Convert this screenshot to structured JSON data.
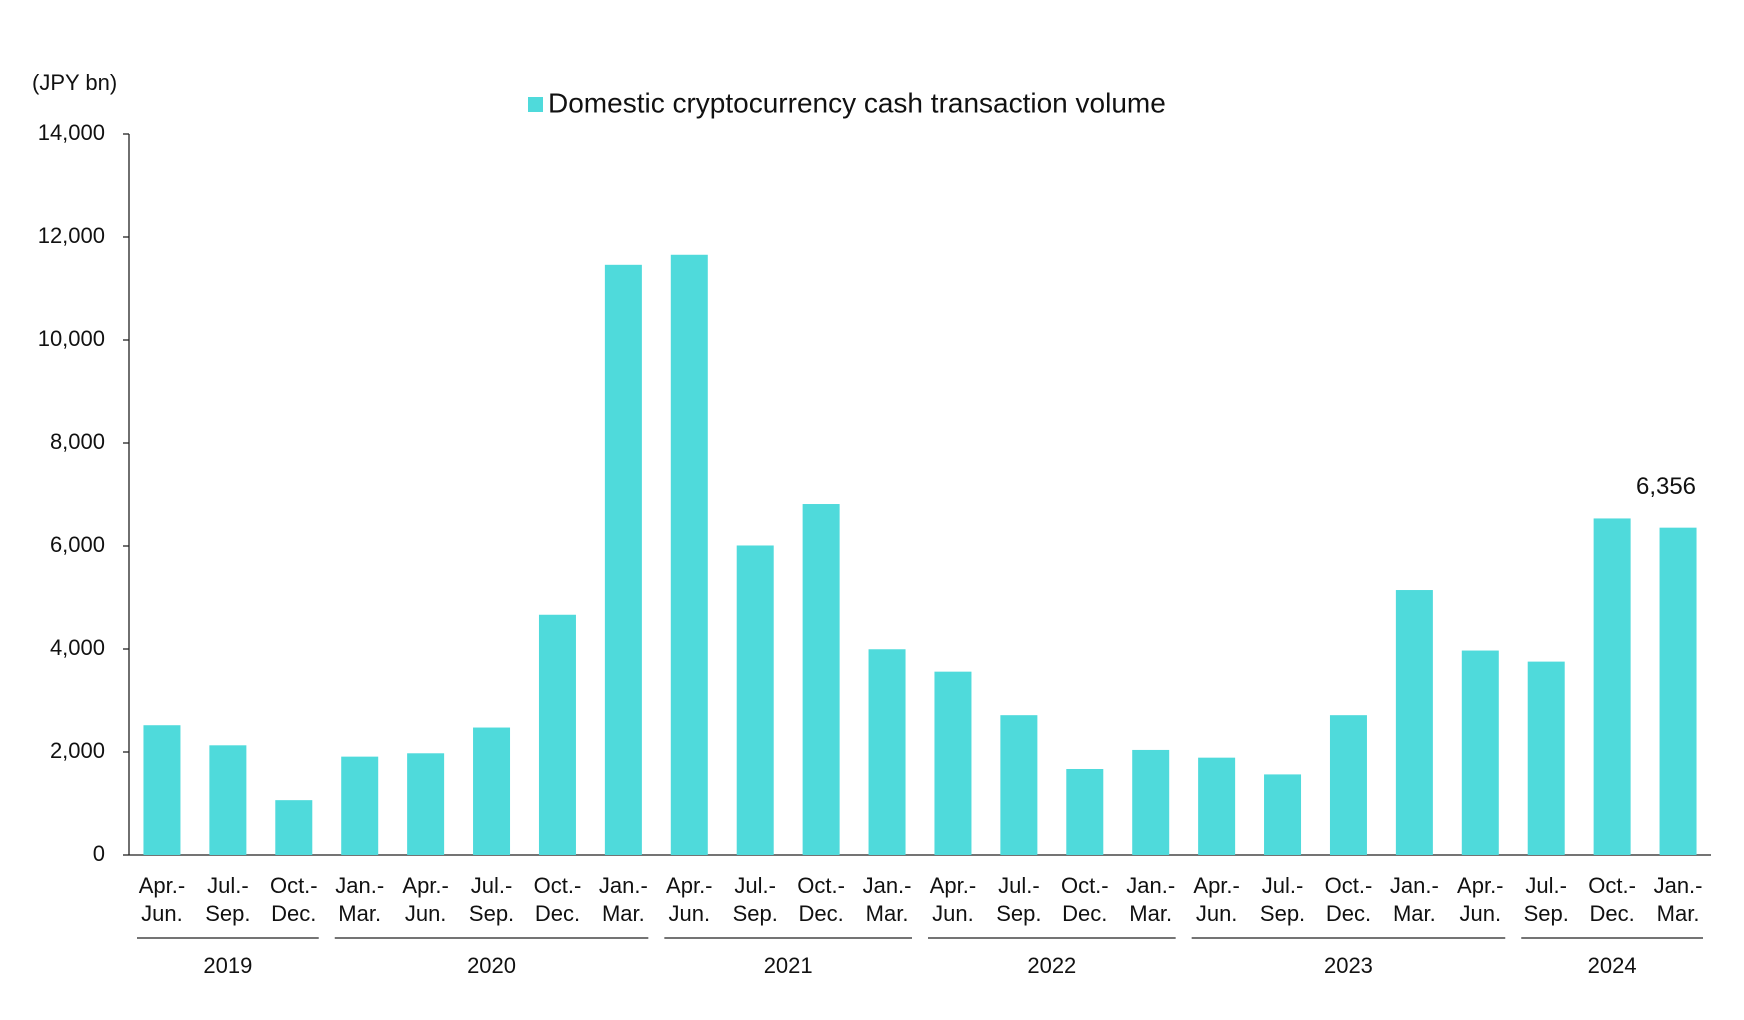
{
  "chart_data": {
    "type": "bar",
    "y_unit_label": "(JPY bn)",
    "categories": [
      "Apr.-\nJun.",
      "Jul.-\nSep.",
      "Oct.-\nDec.",
      "Jan.-\nMar.",
      "Apr.-\nJun.",
      "Jul.-\nSep.",
      "Oct.-\nDec.",
      "Jan.-\nMar.",
      "Apr.-\nJun.",
      "Jul.-\nSep.",
      "Oct.-\nDec.",
      "Jan.-\nMar.",
      "Apr.-\nJun.",
      "Jul.-\nSep.",
      "Oct.-\nDec.",
      "Jan.-\nMar.",
      "Apr.-\nJun.",
      "Jul.-\nSep.",
      "Oct.-\nDec.",
      "Jan.-\nMar.",
      "Apr.-\nJun.",
      "Jul.-\nSep.",
      "Oct.-\nDec.",
      "Jan.-\nMar."
    ],
    "groups": [
      {
        "label": "2019",
        "count": 3
      },
      {
        "label": "2020",
        "count": 5
      },
      {
        "label": "2021",
        "count": 4
      },
      {
        "label": "2022",
        "count": 4
      },
      {
        "label": "2023",
        "count": 5
      },
      {
        "label": "2024",
        "count": 3
      }
    ],
    "series": [
      {
        "name": "Domestic cryptocurrency cash transaction volume",
        "color": "#4fdadb",
        "values": [
          2520,
          2130,
          1065,
          1910,
          1975,
          2475,
          4665,
          11460,
          11655,
          6010,
          6815,
          3995,
          3560,
          2715,
          1670,
          2040,
          1890,
          1565,
          2715,
          5145,
          3970,
          3755,
          6535,
          6356
        ],
        "value_labels": [
          null,
          null,
          null,
          null,
          null,
          null,
          null,
          null,
          null,
          null,
          null,
          null,
          null,
          null,
          null,
          null,
          null,
          null,
          null,
          null,
          null,
          null,
          null,
          "6,356"
        ]
      }
    ],
    "ylim": [
      0,
      14000
    ],
    "yticks": [
      0,
      {
        "value": 2000,
        "label": "2,000"
      },
      {
        "value": 4000,
        "label": "4,000"
      },
      {
        "value": 6000,
        "label": "6,000"
      },
      {
        "value": 8000,
        "label": "8,000"
      },
      {
        "value": 10000,
        "label": "10,000"
      },
      {
        "value": 12000,
        "label": "12,000"
      },
      {
        "value": 14000,
        "label": "14,000"
      }
    ],
    "grid": false,
    "legend": "top"
  }
}
